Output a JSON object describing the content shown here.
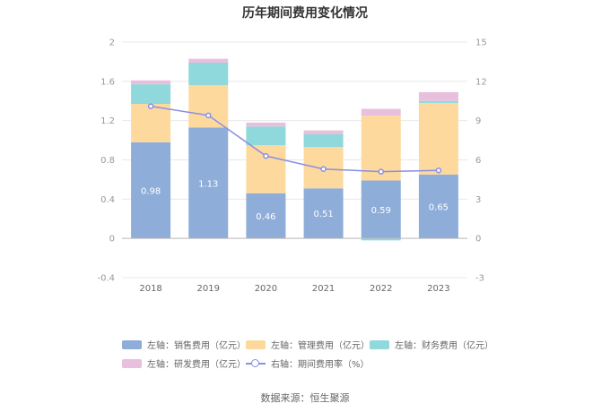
{
  "chart_data": {
    "type": "bar",
    "title": "历年期间费用变化情况",
    "categories": [
      "2018",
      "2019",
      "2020",
      "2021",
      "2022",
      "2023"
    ],
    "stacked": true,
    "left_axis": {
      "min": -0.4,
      "max": 2,
      "ticks": [
        "2",
        "1.6",
        "1.2",
        "0.8",
        "0.4",
        "0",
        "-0.4"
      ]
    },
    "right_axis": {
      "min": -3,
      "max": 15,
      "ticks": [
        "15",
        "12",
        "9",
        "6",
        "3",
        "0",
        "-3"
      ]
    },
    "series": [
      {
        "name": "左轴：销售费用（亿元）",
        "axis": "left",
        "type": "bar",
        "color": "#8eadd9",
        "values": [
          0.98,
          1.13,
          0.46,
          0.51,
          0.59,
          0.65
        ],
        "labels": [
          "0.98",
          "1.13",
          "0.46",
          "0.51",
          "0.59",
          "0.65"
        ]
      },
      {
        "name": "左轴：管理费用（亿元）",
        "axis": "left",
        "type": "bar",
        "color": "#fdd99e",
        "values": [
          0.39,
          0.43,
          0.49,
          0.42,
          0.66,
          0.73
        ]
      },
      {
        "name": "左轴：财务费用（亿元）",
        "axis": "left",
        "type": "bar",
        "color": "#8fd8db",
        "values": [
          0.2,
          0.23,
          0.19,
          0.13,
          -0.02,
          0.02
        ]
      },
      {
        "name": "左轴：研发费用（亿元）",
        "axis": "left",
        "type": "bar",
        "color": "#e8bfdc",
        "values": [
          0.04,
          0.04,
          0.04,
          0.04,
          0.07,
          0.09
        ]
      },
      {
        "name": "右轴：期间费用率（%）",
        "axis": "right",
        "type": "line",
        "color": "#8a8ee6",
        "values": [
          10.1,
          9.4,
          6.3,
          5.3,
          5.1,
          5.2
        ]
      }
    ],
    "source": "数据来源：恒生聚源"
  }
}
